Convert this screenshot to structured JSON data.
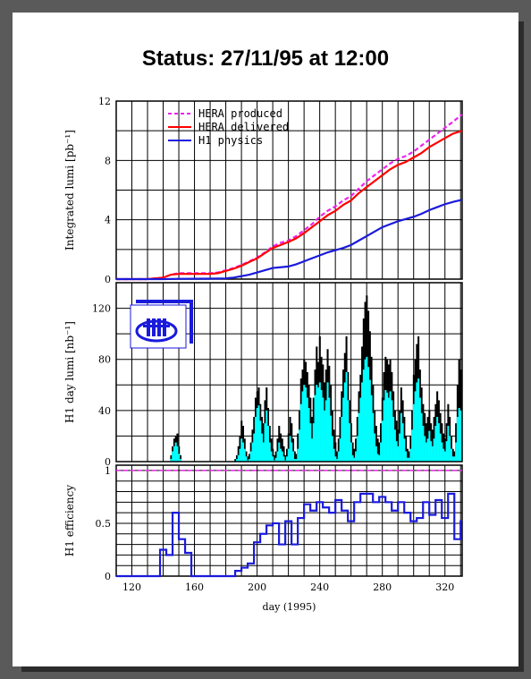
{
  "title": "Status:  27/11/95  at 12:00",
  "colors": {
    "produced": "#ee22ee",
    "delivered": "#ff0000",
    "h1physics": "#1a1adc",
    "fill_cyan": "#00ffff",
    "bars_black": "#000000",
    "efficiency": "#1a1adc",
    "logo": "#1a1adc"
  },
  "icons": {
    "logo": "h1-detector-logo-icon"
  },
  "chart_data": [
    {
      "type": "line",
      "title": "",
      "xlabel": "",
      "ylabel": "Integrated lumi [pb⁻¹]",
      "xlim": [
        110,
        331
      ],
      "ylim": [
        0,
        12
      ],
      "yticks": [
        "0",
        "4",
        "8",
        "12"
      ],
      "grid": true,
      "legend": "top-left",
      "series": [
        {
          "name": "HERA produced",
          "style": "dashed",
          "x": [
            110,
            130,
            140,
            145,
            150,
            160,
            170,
            175,
            180,
            185,
            190,
            195,
            200,
            205,
            210,
            215,
            220,
            225,
            230,
            235,
            240,
            245,
            250,
            255,
            260,
            265,
            270,
            275,
            280,
            285,
            290,
            295,
            300,
            305,
            310,
            315,
            320,
            325,
            331
          ],
          "y": [
            0,
            0,
            0.1,
            0.3,
            0.4,
            0.4,
            0.4,
            0.45,
            0.6,
            0.75,
            0.95,
            1.2,
            1.45,
            1.8,
            2.2,
            2.45,
            2.6,
            2.9,
            3.3,
            3.7,
            4.2,
            4.6,
            4.9,
            5.3,
            5.6,
            6.1,
            6.6,
            7.0,
            7.4,
            7.8,
            8.1,
            8.3,
            8.6,
            9.0,
            9.4,
            9.8,
            10.2,
            10.6,
            11.1
          ]
        },
        {
          "name": "HERA delivered",
          "style": "solid",
          "x": [
            110,
            130,
            140,
            145,
            150,
            160,
            170,
            175,
            180,
            185,
            190,
            195,
            200,
            205,
            210,
            215,
            220,
            225,
            230,
            235,
            240,
            245,
            250,
            255,
            260,
            265,
            270,
            275,
            280,
            285,
            290,
            295,
            300,
            305,
            310,
            315,
            320,
            325,
            331
          ],
          "y": [
            0,
            0,
            0.1,
            0.3,
            0.35,
            0.35,
            0.35,
            0.4,
            0.55,
            0.7,
            0.9,
            1.15,
            1.4,
            1.75,
            2.1,
            2.3,
            2.5,
            2.75,
            3.1,
            3.5,
            3.9,
            4.3,
            4.6,
            5.0,
            5.3,
            5.8,
            6.2,
            6.6,
            7.0,
            7.4,
            7.7,
            7.9,
            8.2,
            8.5,
            8.9,
            9.2,
            9.5,
            9.8,
            10.0
          ]
        },
        {
          "name": "H1 physics",
          "style": "solid",
          "x": [
            110,
            140,
            150,
            170,
            180,
            185,
            190,
            195,
            200,
            205,
            210,
            215,
            220,
            225,
            230,
            235,
            240,
            245,
            250,
            255,
            260,
            265,
            270,
            275,
            280,
            285,
            290,
            295,
            300,
            305,
            310,
            315,
            320,
            325,
            331
          ],
          "y": [
            0,
            0,
            0.02,
            0.03,
            0.05,
            0.1,
            0.2,
            0.3,
            0.45,
            0.6,
            0.75,
            0.8,
            0.85,
            1.0,
            1.2,
            1.4,
            1.6,
            1.8,
            1.95,
            2.1,
            2.3,
            2.6,
            2.9,
            3.2,
            3.5,
            3.7,
            3.9,
            4.05,
            4.2,
            4.4,
            4.65,
            4.85,
            5.05,
            5.2,
            5.35
          ]
        }
      ]
    },
    {
      "type": "area",
      "title": "",
      "xlabel": "",
      "ylabel": "H1 day lumi [nb⁻¹]",
      "xlim": [
        110,
        331
      ],
      "ylim": [
        0,
        140
      ],
      "yticks": [
        "0",
        "40",
        "80",
        "120"
      ],
      "grid": true,
      "series": [
        {
          "name": "",
          "style": "black-bars",
          "x": [
            145,
            146,
            147,
            148,
            149,
            150,
            151,
            186,
            187,
            188,
            189,
            190,
            191,
            192,
            193,
            194,
            195,
            196,
            197,
            198,
            199,
            200,
            201,
            202,
            203,
            204,
            205,
            206,
            207,
            208,
            209,
            210,
            211,
            212,
            213,
            214,
            215,
            216,
            217,
            218,
            219,
            220,
            221,
            222,
            223,
            224,
            225,
            226,
            227,
            228,
            229,
            230,
            231,
            232,
            233,
            234,
            235,
            236,
            237,
            238,
            239,
            240,
            241,
            242,
            243,
            244,
            245,
            246,
            247,
            248,
            249,
            250,
            251,
            252,
            253,
            254,
            255,
            256,
            257,
            258,
            259,
            260,
            261,
            262,
            263,
            264,
            265,
            266,
            267,
            268,
            269,
            270,
            271,
            272,
            273,
            274,
            275,
            276,
            277,
            278,
            279,
            280,
            281,
            282,
            283,
            284,
            285,
            286,
            287,
            288,
            289,
            290,
            291,
            292,
            293,
            294,
            295,
            296,
            297,
            298,
            299,
            300,
            301,
            302,
            303,
            304,
            305,
            306,
            307,
            308,
            309,
            310,
            311,
            312,
            313,
            314,
            315,
            316,
            317,
            318,
            319,
            320,
            321,
            322,
            323,
            324,
            325,
            326,
            327,
            328,
            329,
            330
          ],
          "y": [
            5,
            12,
            18,
            20,
            22,
            12,
            5,
            2,
            5,
            12,
            20,
            32,
            28,
            18,
            8,
            4,
            6,
            15,
            25,
            35,
            50,
            55,
            58,
            45,
            35,
            30,
            48,
            58,
            42,
            28,
            18,
            10,
            5,
            8,
            18,
            28,
            22,
            18,
            12,
            5,
            10,
            22,
            35,
            30,
            18,
            8,
            6,
            22,
            40,
            65,
            72,
            80,
            78,
            70,
            60,
            50,
            35,
            50,
            72,
            90,
            78,
            98,
            82,
            76,
            62,
            72,
            88,
            75,
            60,
            40,
            25,
            15,
            8,
            18,
            35,
            55,
            72,
            85,
            98,
            70,
            48,
            30,
            15,
            10,
            18,
            35,
            55,
            68,
            90,
            112,
            125,
            130,
            118,
            102,
            82,
            60,
            40,
            28,
            18,
            15,
            30,
            50,
            70,
            82,
            80,
            76,
            80,
            70,
            55,
            40,
            32,
            25,
            40,
            58,
            48,
            35,
            20,
            10,
            8,
            20,
            40,
            68,
            80,
            92,
            98,
            72,
            58,
            45,
            38,
            30,
            35,
            40,
            30,
            25,
            35,
            45,
            55,
            48,
            38,
            30,
            22,
            18,
            30,
            45,
            35,
            20,
            10,
            8,
            30,
            60,
            80,
            72
          ]
        },
        {
          "name": "",
          "style": "cyan-fill",
          "x": [
            145,
            146,
            147,
            148,
            149,
            150,
            151,
            186,
            187,
            188,
            189,
            190,
            191,
            192,
            193,
            194,
            195,
            196,
            197,
            198,
            199,
            200,
            201,
            202,
            203,
            204,
            205,
            206,
            207,
            208,
            209,
            210,
            211,
            212,
            213,
            214,
            215,
            216,
            217,
            218,
            219,
            220,
            221,
            222,
            223,
            224,
            225,
            226,
            227,
            228,
            229,
            230,
            231,
            232,
            233,
            234,
            235,
            236,
            237,
            238,
            239,
            240,
            241,
            242,
            243,
            244,
            245,
            246,
            247,
            248,
            249,
            250,
            251,
            252,
            253,
            254,
            255,
            256,
            257,
            258,
            259,
            260,
            261,
            262,
            263,
            264,
            265,
            266,
            267,
            268,
            269,
            270,
            271,
            272,
            273,
            274,
            275,
            276,
            277,
            278,
            279,
            280,
            281,
            282,
            283,
            284,
            285,
            286,
            287,
            288,
            289,
            290,
            291,
            292,
            293,
            294,
            295,
            296,
            297,
            298,
            299,
            300,
            301,
            302,
            303,
            304,
            305,
            306,
            307,
            308,
            309,
            310,
            311,
            312,
            313,
            314,
            315,
            316,
            317,
            318,
            319,
            320,
            321,
            322,
            323,
            324,
            325,
            326,
            327,
            328,
            329,
            330
          ],
          "y": [
            2,
            8,
            12,
            15,
            12,
            6,
            2,
            0,
            2,
            5,
            10,
            18,
            15,
            10,
            4,
            1,
            2,
            8,
            15,
            22,
            35,
            42,
            44,
            32,
            22,
            15,
            30,
            40,
            28,
            15,
            8,
            4,
            1,
            3,
            8,
            15,
            10,
            8,
            4,
            1,
            4,
            10,
            20,
            15,
            8,
            2,
            2,
            10,
            25,
            45,
            55,
            60,
            58,
            50,
            42,
            30,
            18,
            30,
            52,
            60,
            58,
            62,
            56,
            50,
            40,
            48,
            62,
            50,
            36,
            20,
            10,
            4,
            2,
            8,
            18,
            35,
            50,
            62,
            70,
            48,
            30,
            15,
            5,
            3,
            8,
            20,
            38,
            50,
            62,
            72,
            80,
            82,
            74,
            64,
            52,
            38,
            22,
            12,
            6,
            5,
            15,
            32,
            48,
            56,
            54,
            50,
            55,
            48,
            35,
            25,
            16,
            12,
            22,
            38,
            30,
            18,
            8,
            3,
            3,
            10,
            25,
            45,
            55,
            62,
            65,
            50,
            38,
            28,
            20,
            15,
            18,
            24,
            16,
            12,
            18,
            28,
            35,
            30,
            22,
            15,
            10,
            8,
            16,
            28,
            20,
            10,
            4,
            4,
            15,
            35,
            42,
            40
          ]
        }
      ]
    },
    {
      "type": "line",
      "title": "",
      "xlabel": "day (1995)",
      "ylabel": "H1 efficiency",
      "xlim": [
        110,
        331
      ],
      "ylim": [
        0,
        1.05
      ],
      "yticks": [
        "0",
        "0.5",
        "1"
      ],
      "xticks": [
        "120",
        "160",
        "200",
        "240",
        "280",
        "320"
      ],
      "xtick_values": [
        120,
        160,
        200,
        240,
        280,
        320
      ],
      "grid": true,
      "reference_line": {
        "y": 1,
        "style": "dashed"
      },
      "series": [
        {
          "name": "",
          "style": "step",
          "x": [
            110,
            114,
            118,
            122,
            126,
            130,
            134,
            138,
            142,
            146,
            150,
            154,
            158,
            162,
            166,
            170,
            174,
            178,
            182,
            186,
            190,
            194,
            198,
            202,
            206,
            210,
            214,
            218,
            222,
            226,
            230,
            234,
            238,
            242,
            246,
            250,
            254,
            258,
            262,
            266,
            270,
            274,
            278,
            282,
            286,
            290,
            294,
            298,
            302,
            306,
            310,
            314,
            318,
            322,
            326,
            330
          ],
          "y": [
            0,
            0,
            0,
            0,
            0,
            0,
            0,
            0.25,
            0.2,
            0.6,
            0.35,
            0.22,
            0,
            0,
            0,
            0,
            0,
            0,
            0,
            0.05,
            0.08,
            0.12,
            0.32,
            0.4,
            0.48,
            0.5,
            0.3,
            0.52,
            0.3,
            0.55,
            0.68,
            0.62,
            0.7,
            0.65,
            0.6,
            0.72,
            0.62,
            0.52,
            0.7,
            0.78,
            0.78,
            0.7,
            0.75,
            0.7,
            0.62,
            0.7,
            0.6,
            0.52,
            0.55,
            0.7,
            0.58,
            0.72,
            0.55,
            0.78,
            0.35,
            0.52
          ]
        }
      ]
    }
  ]
}
